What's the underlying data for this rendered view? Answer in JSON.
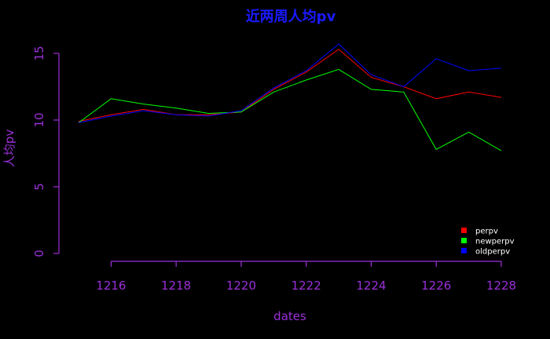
{
  "chart_data": {
    "type": "line",
    "title": "近两周人均pv",
    "xlabel": "dates",
    "ylabel": "人均pv",
    "x": [
      1215,
      1216,
      1217,
      1218,
      1219,
      1220,
      1221,
      1222,
      1223,
      1224,
      1225,
      1226,
      1227,
      1228
    ],
    "xticks": [
      "1216",
      "1218",
      "1220",
      "1222",
      "1224",
      "1226",
      "1228"
    ],
    "yticks": [
      "0",
      "5",
      "10",
      "15"
    ],
    "xlim": [
      1215,
      1228
    ],
    "ylim": [
      0,
      15
    ],
    "grid": false,
    "legend_position": "bottom-right",
    "series": [
      {
        "name": "perpv",
        "color": "#ff0000",
        "values": [
          9.9,
          10.4,
          10.8,
          10.4,
          10.4,
          10.6,
          12.3,
          13.6,
          15.3,
          13.2,
          12.5,
          11.6,
          12.1,
          11.7
        ]
      },
      {
        "name": "newperpv",
        "color": "#00ff00",
        "values": [
          9.8,
          11.6,
          11.2,
          10.9,
          10.5,
          10.6,
          12.1,
          13.0,
          13.8,
          12.3,
          12.1,
          7.8,
          9.1,
          7.7
        ]
      },
      {
        "name": "oldperpv",
        "color": "#0000ff",
        "values": [
          9.8,
          10.3,
          10.7,
          10.4,
          10.3,
          10.7,
          12.4,
          13.7,
          15.7,
          13.4,
          12.5,
          14.6,
          13.7,
          13.9
        ]
      }
    ]
  }
}
